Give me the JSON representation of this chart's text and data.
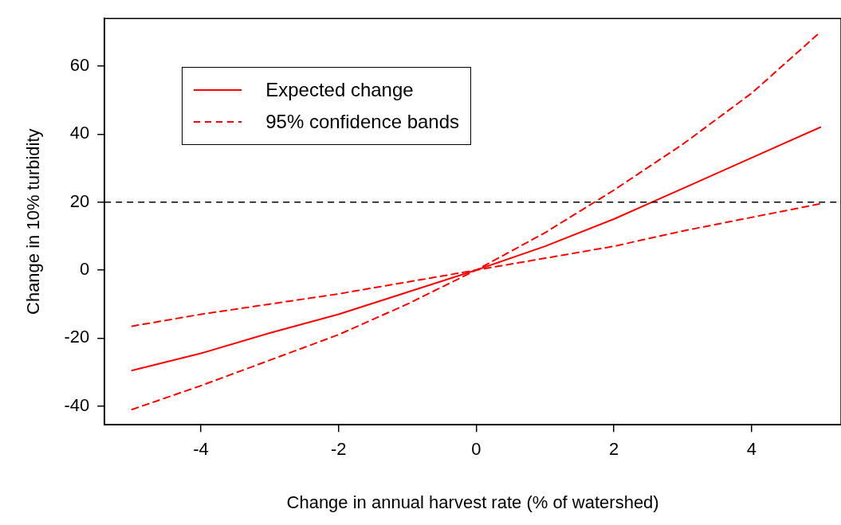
{
  "chart_data": {
    "type": "line",
    "xlabel": "Change in annual harvest rate (% of watershed)",
    "ylabel": "Change in 10% turbidity",
    "x": [
      -5,
      -4,
      -3,
      -2,
      -1,
      0,
      1,
      2,
      3,
      4,
      5
    ],
    "series": [
      {
        "name": "Expected change",
        "color": "#ff0000",
        "line_style": "solid",
        "values": [
          -29.5,
          -24.5,
          -18.5,
          -13,
          -6.5,
          0,
          7,
          15,
          24,
          33,
          42
        ]
      },
      {
        "name": "95% confidence bands",
        "color": "#ff0000",
        "line_style": "dashed",
        "values": [
          -41,
          -34,
          -26.5,
          -19,
          -10,
          0,
          11,
          23.5,
          37,
          52,
          70
        ]
      },
      {
        "color": "#ff0000",
        "line_style": "dashed",
        "values": [
          -16.5,
          -13,
          -10,
          -7,
          -3.5,
          0,
          3.5,
          7,
          11.5,
          15.5,
          19.5
        ]
      }
    ],
    "xlim": [
      -5.4,
      5.3
    ],
    "xticks": [
      -4,
      -2,
      0,
      2,
      4
    ],
    "ylim": [
      -45.5,
      74
    ],
    "yticks": [
      -40,
      -20,
      0,
      20,
      40,
      60
    ],
    "ref_lines": [
      {
        "axis": "y",
        "value": 20,
        "color": "#000000",
        "line_style": "dashed"
      }
    ],
    "grid": false,
    "legend": "top left",
    "marker": "none"
  }
}
